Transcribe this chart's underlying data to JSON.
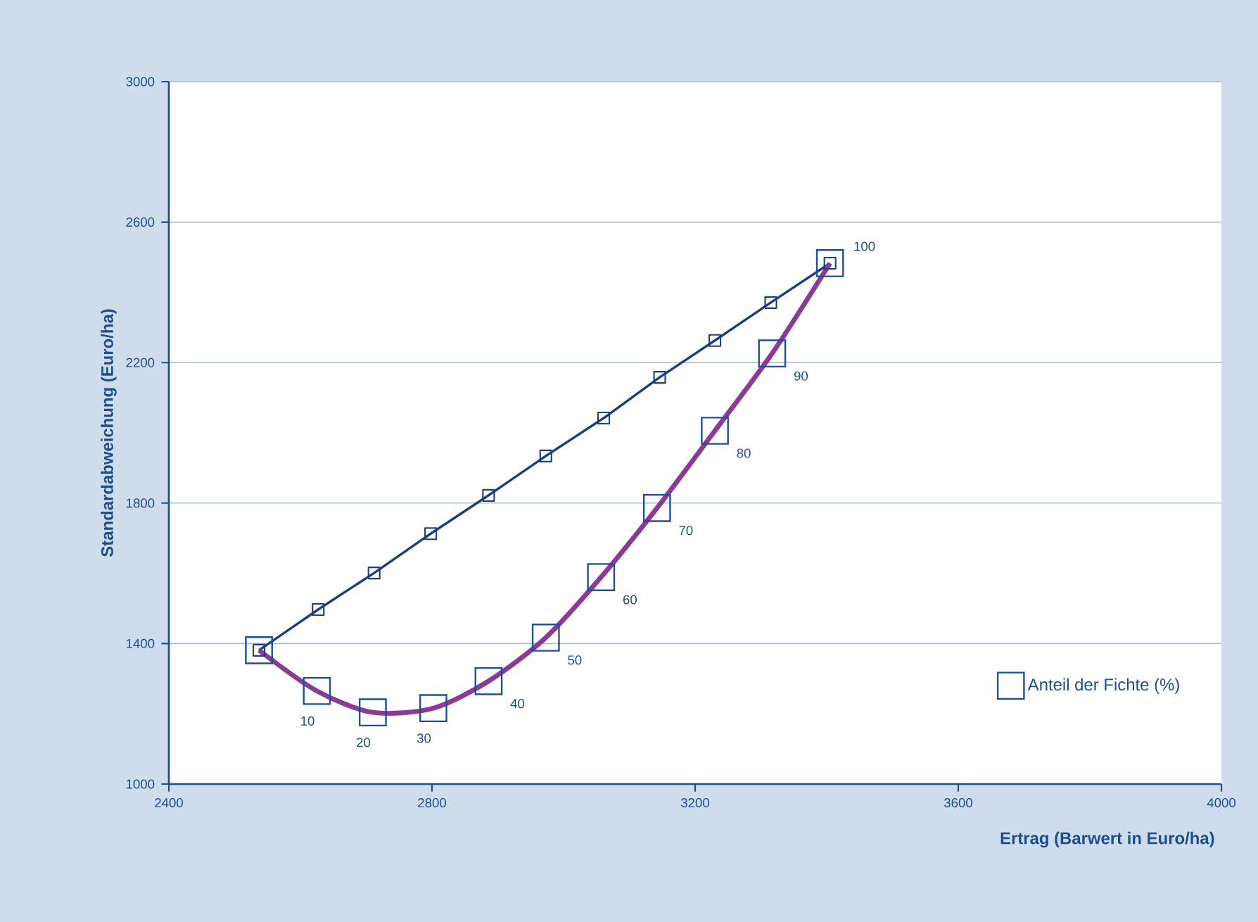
{
  "chart_data": {
    "type": "line",
    "xlabel": "Ertrag (Barwert in Euro/ha)",
    "ylabel": "Standardabweichung (Euro/ha)",
    "xlim": [
      2400,
      4000
    ],
    "ylim": [
      1000,
      3000
    ],
    "xticks": [
      2400,
      2800,
      3200,
      3600,
      4000
    ],
    "yticks": [
      1000,
      1400,
      1800,
      2200,
      2600,
      3000
    ],
    "grid": "y",
    "legend": "bottom right",
    "series": [
      {
        "color": "#1d3f80",
        "marker": "square",
        "line_style": "solid",
        "x": [
          2537,
          2627,
          2712,
          2798,
          2886,
          2973,
          3061,
          3146,
          3230,
          3315,
          3405
        ],
        "values": [
          1381,
          1497,
          1601,
          1713,
          1822,
          1934,
          2042,
          2158,
          2263,
          2371,
          2483
        ]
      },
      {
        "color": "#8b3a96",
        "marker": "none",
        "line_style": "solid",
        "x": [
          2537,
          2625,
          2710,
          2802,
          2886,
          2973,
          3057,
          3142,
          3230,
          3317,
          3405
        ],
        "values": [
          1381,
          1265,
          1204,
          1216,
          1293,
          1417,
          1589,
          1786,
          2006,
          2226,
          2483
        ]
      },
      {
        "type": "scatter",
        "name": "Anteil der Fichte (%)",
        "color": "#1d4f9a",
        "marker": "square",
        "x": [
          2537,
          2625,
          2710,
          2802,
          2886,
          2973,
          3057,
          3142,
          3230,
          3317,
          3405
        ],
        "values": [
          1381,
          1265,
          1204,
          1216,
          1293,
          1417,
          1589,
          1786,
          2006,
          2226,
          2483
        ]
      }
    ],
    "annotations": [
      {
        "text": "10",
        "x": 2625,
        "y": 1265
      },
      {
        "text": "20",
        "x": 2710,
        "y": 1204
      },
      {
        "text": "30",
        "x": 2802,
        "y": 1216
      },
      {
        "text": "40",
        "x": 2886,
        "y": 1293
      },
      {
        "text": "50",
        "x": 2973,
        "y": 1417
      },
      {
        "text": "60",
        "x": 3057,
        "y": 1589
      },
      {
        "text": "70",
        "x": 3142,
        "y": 1786
      },
      {
        "text": "80",
        "x": 3230,
        "y": 2006
      },
      {
        "text": "90",
        "x": 3317,
        "y": 2226
      },
      {
        "text": "100",
        "x": 3405,
        "y": 2483
      }
    ]
  }
}
